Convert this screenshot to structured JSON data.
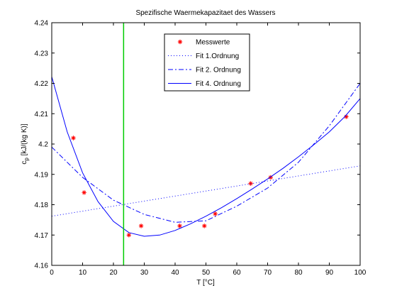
{
  "chart_data": {
    "type": "scatter",
    "title": "Spezifische Waermekapazitaet des Wassers",
    "xlabel": "T [°C]",
    "ylabel_main": "c",
    "ylabel_sub": "p",
    "ylabel_rest": " [kJ/(kg K)]",
    "xlim": [
      0,
      100
    ],
    "ylim": [
      4.16,
      4.24
    ],
    "x_ticks": [
      0,
      10,
      20,
      30,
      40,
      50,
      60,
      70,
      80,
      90,
      100
    ],
    "x_tick_labels": [
      "0",
      "10",
      "20",
      "30",
      "40",
      "50",
      "60",
      "70",
      "80",
      "90",
      "100"
    ],
    "y_ticks": [
      4.16,
      4.17,
      4.18,
      4.19,
      4.2,
      4.21,
      4.22,
      4.23,
      4.24
    ],
    "y_tick_labels": [
      "4.16",
      "4.17",
      "4.18",
      "4.19",
      "4.2",
      "4.21",
      "4.22",
      "4.23",
      "4.24"
    ],
    "grid": false,
    "legend_position": "top-center",
    "vertical_line": {
      "x": 23.3,
      "color": "#00cc00"
    },
    "series": [
      {
        "name": "Messwerte",
        "kind": "markers",
        "marker": "asterisk",
        "color": "#ff0000",
        "points": [
          [
            7,
            4.202
          ],
          [
            10.5,
            4.184
          ],
          [
            25,
            4.17
          ],
          [
            29,
            4.173
          ],
          [
            41.5,
            4.173
          ],
          [
            49.5,
            4.173
          ],
          [
            53,
            4.177
          ],
          [
            64.5,
            4.187
          ],
          [
            71,
            4.189
          ],
          [
            95.5,
            4.209
          ]
        ]
      },
      {
        "name": "Fit 1.Ordnung",
        "kind": "line",
        "dash": "dotted",
        "color": "#0000ff",
        "points": [
          [
            0,
            4.1762
          ],
          [
            100,
            4.1928
          ]
        ]
      },
      {
        "name": "Fit 2. Ordnung",
        "kind": "line",
        "dash": "dashdot",
        "color": "#0000ff",
        "points": [
          [
            0,
            4.199
          ],
          [
            10,
            4.189
          ],
          [
            20,
            4.1815
          ],
          [
            30,
            4.1768
          ],
          [
            40,
            4.1742
          ],
          [
            50,
            4.1747
          ],
          [
            60,
            4.1795
          ],
          [
            70,
            4.1855
          ],
          [
            80,
            4.194
          ],
          [
            90,
            4.206
          ],
          [
            100,
            4.22
          ]
        ]
      },
      {
        "name": "Fit 4. Ordnung",
        "kind": "line",
        "dash": "solid",
        "color": "#0000ff",
        "points": [
          [
            0,
            4.2222
          ],
          [
            5,
            4.204
          ],
          [
            10,
            4.1905
          ],
          [
            15,
            4.181
          ],
          [
            20,
            4.1745
          ],
          [
            25,
            4.1708
          ],
          [
            30,
            4.1696
          ],
          [
            35,
            4.17
          ],
          [
            40,
            4.1715
          ],
          [
            45,
            4.1737
          ],
          [
            50,
            4.1762
          ],
          [
            55,
            4.179
          ],
          [
            60,
            4.182
          ],
          [
            65,
            4.1852
          ],
          [
            70,
            4.1885
          ],
          [
            75,
            4.192
          ],
          [
            80,
            4.1958
          ],
          [
            85,
            4.1998
          ],
          [
            90,
            4.204
          ],
          [
            95,
            4.209
          ],
          [
            100,
            4.215
          ]
        ]
      }
    ]
  }
}
